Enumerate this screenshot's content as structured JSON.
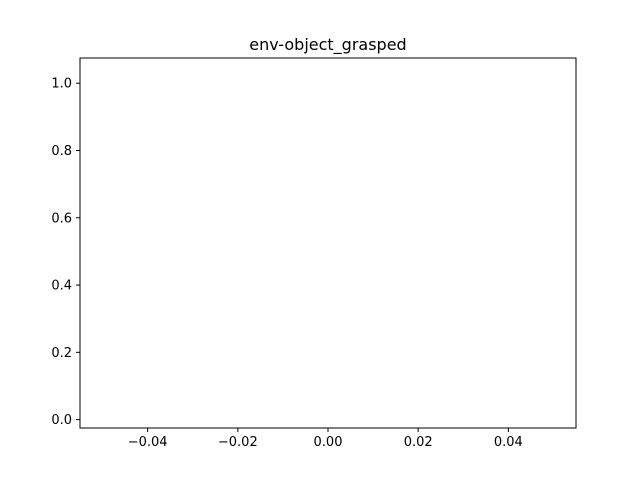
{
  "chart_data": {
    "type": "line",
    "title": "env-object_grasped",
    "xlabel": "",
    "ylabel": "",
    "xlim": [
      -0.055,
      0.055
    ],
    "ylim": [
      -0.025,
      1.075
    ],
    "x_ticks": [
      -0.04,
      -0.02,
      0.0,
      0.02,
      0.04
    ],
    "x_tick_labels": [
      "−0.04",
      "−0.02",
      "0.00",
      "0.02",
      "0.04"
    ],
    "y_ticks": [
      0.0,
      0.2,
      0.4,
      0.6,
      0.8,
      1.0
    ],
    "y_tick_labels": [
      "0.0",
      "0.2",
      "0.4",
      "0.6",
      "0.8",
      "1.0"
    ],
    "grid": false,
    "series": []
  }
}
